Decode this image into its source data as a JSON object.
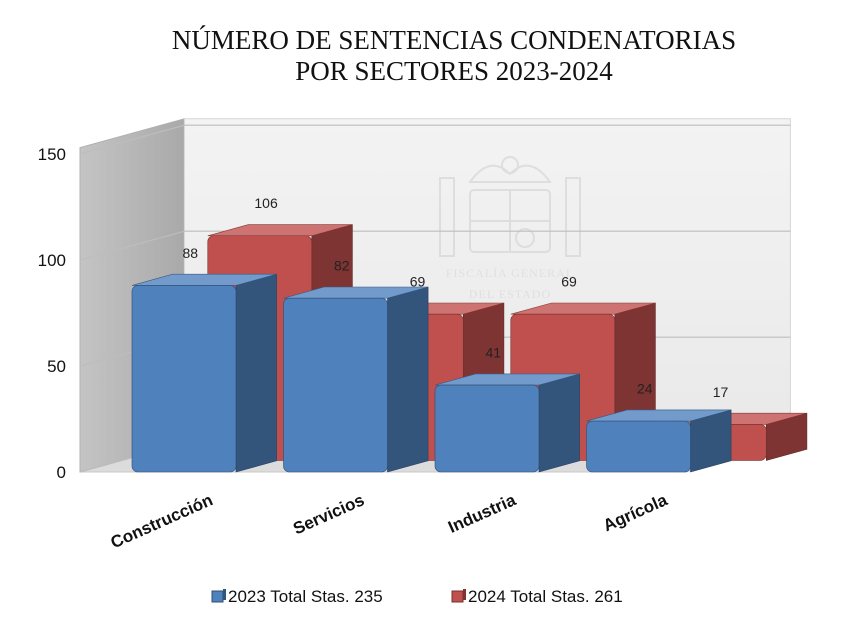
{
  "chart_data": {
    "type": "bar",
    "title": [
      "NÚMERO DE SENTENCIAS CONDENATORIAS",
      "POR SECTORES 2023-2024"
    ],
    "categories": [
      "Construcción",
      "Servicios",
      "Industria",
      "Agrícola"
    ],
    "series": [
      {
        "name": "2023 Total Stas. 235",
        "values": [
          88,
          82,
          41,
          24
        ],
        "color": "#4f81bd"
      },
      {
        "name": "2024 Total Stas. 261",
        "values": [
          106,
          69,
          69,
          17
        ],
        "color": "#c0504d"
      }
    ],
    "y_ticks": [
      "0",
      "50",
      "100",
      "150"
    ],
    "ylim": [
      0,
      150
    ],
    "grid": true,
    "legend_position": "bottom",
    "three_d": true
  },
  "watermark": {
    "emblem": "coat-of-arms-of-spain",
    "text": [
      "FISCALÍA GENERAL",
      "DEL ESTADO"
    ]
  }
}
